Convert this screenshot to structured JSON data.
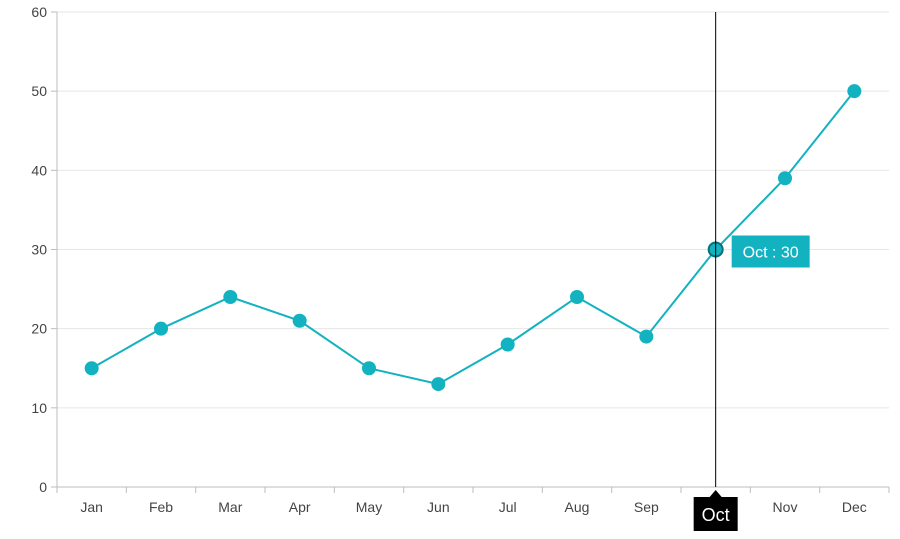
{
  "colors": {
    "series": "#13b2c0",
    "tooltip_bg": "#13b2c0",
    "axis_tooltip_bg": "#000000",
    "crosshair": "#000000"
  },
  "tooltip": {
    "label": "Oct : 30"
  },
  "axis_tooltip": {
    "label": "Oct"
  },
  "chart_data": {
    "type": "line",
    "categories": [
      "Jan",
      "Feb",
      "Mar",
      "Apr",
      "May",
      "Jun",
      "Jul",
      "Aug",
      "Sep",
      "Oct",
      "Nov",
      "Dec"
    ],
    "series": [
      {
        "values": [
          15,
          20,
          24,
          21,
          15,
          13,
          18,
          24,
          19,
          30,
          39,
          50
        ]
      }
    ],
    "ylim": [
      0,
      60
    ],
    "yticks": [
      0,
      10,
      20,
      30,
      40,
      50,
      60
    ],
    "grid": true,
    "markers": true,
    "crosshair_category": "Oct",
    "title": "",
    "xlabel": "",
    "ylabel": ""
  }
}
